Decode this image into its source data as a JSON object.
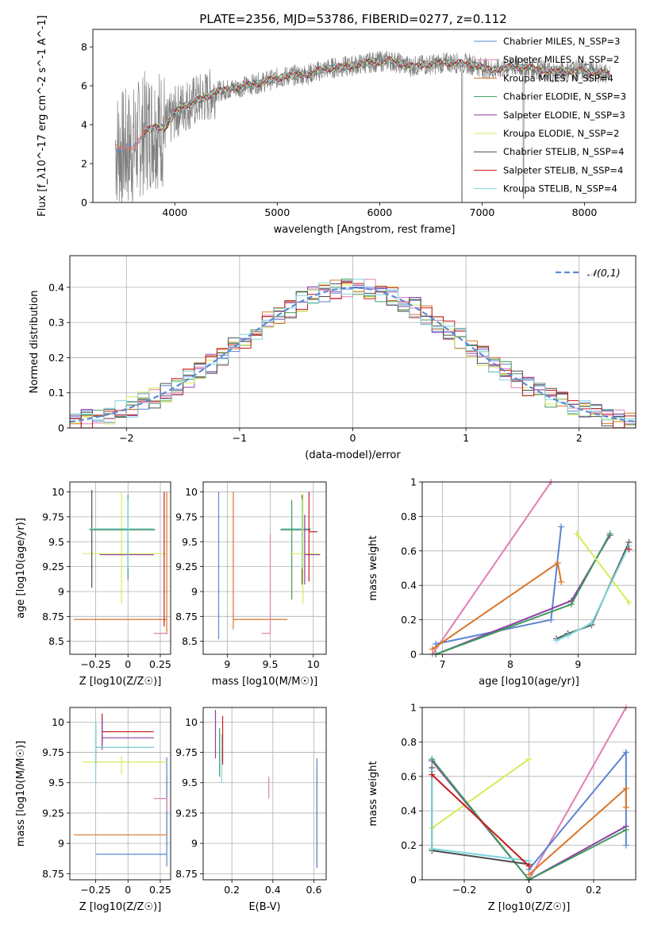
{
  "title": "PLATE=2356, MJD=53786, FIBERID=0277, z=0.112",
  "colors": {
    "chabrier_miles": "#5b84d2",
    "salpeter_miles": "#e07fb3",
    "kroupa_miles": "#d9772a",
    "chabrier_elodie": "#3f9c5d",
    "salpeter_elodie": "#8e3fa6",
    "kroupa_elodie": "#d3ec5a",
    "chabrier_stelib": "#4d4d4d",
    "salpeter_stelib": "#c81b1b",
    "kroupa_stelib": "#7fd6dd",
    "data": "#7f7f7f",
    "gaussian": "#5b8ad6",
    "grid": "#b0b0b0"
  },
  "chart_data": [
    {
      "type": "line",
      "xlabel": "wavelength [Angstrom, rest frame]",
      "ylabel": "Flux [f_λ10^-17 erg cm^-2 s^-1 A^-1]",
      "xlim": [
        3200,
        8500
      ],
      "ylim": [
        0,
        8.9
      ],
      "xticks": [
        4000,
        5000,
        6000,
        7000,
        8000
      ],
      "yticks": [
        0,
        2,
        4,
        6,
        8
      ],
      "legend_position": "top-right",
      "series": [
        {
          "name": "Chabrier MILES, N_SSP=3"
        },
        {
          "name": "Salpeter MILES, N_SSP=2"
        },
        {
          "name": "Kroupa MILES, N_SSP=4"
        },
        {
          "name": "Chabrier ELODIE, N_SSP=3"
        },
        {
          "name": "Salpeter ELODIE, N_SSP=3"
        },
        {
          "name": "Kroupa ELODIE, N_SSP=2"
        },
        {
          "name": "Chabrier STELIB, N_SSP=4"
        },
        {
          "name": "Salpeter STELIB, N_SSP=4"
        },
        {
          "name": "Kroupa STELIB, N_SSP=4"
        }
      ],
      "model_curve": {
        "x": [
          3420,
          3500,
          3600,
          3700,
          3800,
          3900,
          4000,
          4100,
          4200,
          4300,
          4400,
          4500,
          4700,
          4900,
          5100,
          5300,
          5500,
          5700,
          5900,
          6100,
          6300,
          6500,
          6700,
          6900,
          7100,
          7300,
          7500,
          7700,
          7900,
          8100,
          8250
        ],
        "y": [
          2.85,
          2.7,
          2.9,
          3.6,
          3.9,
          3.8,
          4.6,
          5.0,
          5.2,
          5.4,
          5.7,
          5.8,
          6.0,
          6.25,
          6.5,
          6.6,
          6.9,
          7.0,
          7.2,
          7.3,
          7.0,
          7.1,
          7.2,
          7.1,
          6.8,
          7.0,
          6.9,
          6.7,
          6.8,
          6.7,
          6.6
        ]
      }
    },
    {
      "type": "line",
      "xlabel": "(data-model)/error",
      "ylabel": "Normed distribution",
      "xlim": [
        -2.5,
        2.5
      ],
      "ylim": [
        0,
        0.49
      ],
      "xticks": [
        -2,
        -1,
        0,
        1,
        2
      ],
      "yticks": [
        0.0,
        0.1,
        0.2,
        0.3,
        0.4
      ],
      "legend_position": "top-right",
      "series": [
        {
          "name": "𝒩(0,1)"
        }
      ]
    },
    {
      "type": "scatter",
      "xlabel": "Z [log10(Z/Z☉)]",
      "ylabel": "age  [log10(age/yr)]",
      "xlim": [
        -0.45,
        0.33
      ],
      "ylim": [
        8.37,
        10.1
      ],
      "xticks": [
        -0.25,
        0.0,
        0.25
      ],
      "yticks": [
        8.5,
        8.75,
        9.0,
        9.25,
        9.5,
        9.75,
        10.0
      ],
      "points": [
        {
          "c": "kroupa_miles",
          "x": 0.3,
          "y": 8.72,
          "xerr": [
            0.72,
            0.0
          ],
          "yerr": [
            0.15,
            1.28
          ]
        },
        {
          "c": "salpeter_miles",
          "x": 0.3,
          "y": 8.58,
          "xerr": [
            0.1,
            0.0
          ],
          "yerr": [
            0,
            0.0
          ]
        },
        {
          "c": "kroupa_elodie",
          "x": -0.05,
          "y": 9.38,
          "xerr": [
            0.3,
            0.35
          ],
          "yerr": [
            0.5,
            0.62
          ]
        },
        {
          "c": "salpeter_elodie",
          "x": 0.0,
          "y": 9.37,
          "xerr": [
            0.22,
            0.2
          ],
          "yerr": [
            0.15,
            0.15
          ]
        },
        {
          "c": "chabrier_stelib",
          "x": -0.28,
          "y": 9.62,
          "xerr": [
            0.0,
            0.49
          ],
          "yerr": [
            0.58,
            0.4
          ]
        },
        {
          "c": "chabrier_elodie",
          "x": 0.0,
          "y": 9.62,
          "xerr": [
            0.3,
            0.2
          ],
          "yerr": [
            0.5,
            0.35
          ]
        },
        {
          "c": "kroupa_stelib",
          "x": 0.0,
          "y": 9.63,
          "xerr": [
            0.3,
            0.2
          ],
          "yerr": [
            0.4,
            0.3
          ]
        },
        {
          "c": "salpeter_stelib",
          "x": 0.28,
          "y": 9.0,
          "xerr": [
            0.0,
            0.0
          ],
          "yerr": [
            0.35,
            1.0
          ]
        }
      ]
    },
    {
      "type": "scatter",
      "xlabel": "mass [log10(M/M☉)]",
      "ylabel": "",
      "xlim": [
        8.72,
        10.15
      ],
      "ylim": [
        8.37,
        10.1
      ],
      "xticks": [
        9.0,
        9.5,
        10.0
      ],
      "yticks": [
        8.5,
        8.75,
        9.0,
        9.25,
        9.5,
        9.75,
        10.0
      ],
      "points": [
        {
          "c": "chabrier_miles",
          "x": 8.9,
          "y": 8.72,
          "xerr": [
            0,
            0
          ],
          "yerr": [
            0.2,
            1.28
          ]
        },
        {
          "c": "kroupa_miles",
          "x": 9.07,
          "y": 8.72,
          "xerr": [
            0.0,
            0.63
          ],
          "yerr": [
            0.1,
            1.28
          ]
        },
        {
          "c": "salpeter_miles",
          "x": 9.5,
          "y": 8.58,
          "xerr": [
            0.1,
            0.0
          ],
          "yerr": [
            0.0,
            1.0
          ]
        },
        {
          "c": "chabrier_stelib",
          "x": 9.87,
          "y": 9.62,
          "xerr": [
            0.25,
            0.1
          ],
          "yerr": [
            0.55,
            0.35
          ]
        },
        {
          "c": "kroupa_stelib",
          "x": 9.87,
          "y": 9.63,
          "xerr": [
            0.25,
            0.1
          ],
          "yerr": [
            0.4,
            0.3
          ]
        },
        {
          "c": "chabrier_elodie",
          "x": 9.75,
          "y": 9.62,
          "xerr": [
            0.1,
            0.1
          ],
          "yerr": [
            0.7,
            0.3
          ]
        },
        {
          "c": "kroupa_elodie",
          "x": 9.88,
          "y": 9.38,
          "xerr": [
            0.15,
            0.2
          ],
          "yerr": [
            0.5,
            0.6
          ]
        },
        {
          "c": "salpeter_elodie",
          "x": 9.9,
          "y": 9.37,
          "xerr": [
            0.0,
            0.18
          ],
          "yerr": [
            0.3,
            0.4
          ]
        },
        {
          "c": "salpeter_stelib",
          "x": 9.95,
          "y": 9.6,
          "xerr": [
            0.0,
            0.1
          ],
          "yerr": [
            0.5,
            0.4
          ]
        }
      ]
    },
    {
      "type": "line",
      "xlabel": "age  [log10(age/yr)]",
      "ylabel": "mass weight",
      "xlim": [
        6.7,
        9.85
      ],
      "ylim": [
        0,
        1.0
      ],
      "xticks": [
        7,
        8,
        9
      ],
      "yticks": [
        0.0,
        0.2,
        0.4,
        0.6,
        0.8,
        1.0
      ],
      "series": [
        {
          "c": "salpeter_miles",
          "x": [
            6.85,
            8.6
          ],
          "y": [
            0.0,
            1.0
          ]
        },
        {
          "c": "chabrier_miles",
          "x": [
            6.9,
            8.6,
            8.75
          ],
          "y": [
            0.06,
            0.2,
            0.74
          ]
        },
        {
          "c": "kroupa_miles",
          "x": [
            6.85,
            8.7,
            8.75
          ],
          "y": [
            0.03,
            0.53,
            0.42
          ]
        },
        {
          "c": "salpeter_elodie",
          "x": [
            6.9,
            8.9,
            9.47
          ],
          "y": [
            0.0,
            0.31,
            0.69
          ]
        },
        {
          "c": "chabrier_elodie",
          "x": [
            6.9,
            8.9,
            9.47
          ],
          "y": [
            0.0,
            0.29,
            0.7
          ]
        },
        {
          "c": "kroupa_elodie",
          "x": [
            8.98,
            9.75
          ],
          "y": [
            0.7,
            0.3
          ]
        },
        {
          "c": "chabrier_stelib",
          "x": [
            8.68,
            8.85,
            9.2,
            9.75
          ],
          "y": [
            0.09,
            0.12,
            0.17,
            0.65
          ]
        },
        {
          "c": "kroupa_stelib",
          "x": [
            8.68,
            8.85,
            9.2,
            9.75
          ],
          "y": [
            0.08,
            0.11,
            0.18,
            0.63
          ]
        },
        {
          "c": "salpeter_stelib",
          "x": [
            9.75
          ],
          "y": [
            0.61
          ]
        }
      ]
    },
    {
      "type": "scatter",
      "xlabel": "Z [log10(Z/Z☉)]",
      "ylabel": "mass [log10(M/M☉)]",
      "xlim": [
        -0.45,
        0.33
      ],
      "ylim": [
        8.7,
        10.12
      ],
      "xticks": [
        -0.25,
        0.0,
        0.25
      ],
      "yticks": [
        8.75,
        9.0,
        9.25,
        9.5,
        9.75,
        10.0
      ],
      "points": [
        {
          "c": "kroupa_miles",
          "x": 0.3,
          "y": 9.07,
          "xerr": [
            0.72,
            0.0
          ],
          "yerr": [
            0.1,
            0.5
          ]
        },
        {
          "c": "chabrier_miles",
          "x": 0.3,
          "y": 8.91,
          "xerr": [
            0.55,
            0.0
          ],
          "yerr": [
            0.1,
            0.8
          ]
        },
        {
          "c": "salpeter_miles",
          "x": 0.3,
          "y": 9.37,
          "xerr": [
            0.1,
            0.0
          ],
          "yerr": [
            0.1,
            0.0
          ]
        },
        {
          "c": "kroupa_elodie",
          "x": -0.05,
          "y": 9.67,
          "xerr": [
            0.3,
            0.35
          ],
          "yerr": [
            0.1,
            0.05
          ]
        },
        {
          "c": "salpeter_stelib",
          "x": -0.2,
          "y": 9.92,
          "xerr": [
            0.0,
            0.4
          ],
          "yerr": [
            0.1,
            0.15
          ]
        },
        {
          "c": "salpeter_elodie",
          "x": -0.2,
          "y": 9.87,
          "xerr": [
            0.0,
            0.4
          ],
          "yerr": [
            0.1,
            0.15
          ]
        },
        {
          "c": "chabrier_elodie",
          "x": -0.25,
          "y": 9.79,
          "xerr": [
            0.0,
            0.45
          ],
          "yerr": [
            0.1,
            0.15
          ]
        },
        {
          "c": "chabrier_stelib",
          "x": -0.25,
          "y": 9.79,
          "xerr": [
            0.0,
            0.45
          ],
          "yerr": [
            0.15,
            0.2
          ]
        },
        {
          "c": "kroupa_stelib",
          "x": -0.25,
          "y": 9.79,
          "xerr": [
            0.0,
            0.45
          ],
          "yerr": [
            0.3,
            0.2
          ]
        }
      ]
    },
    {
      "type": "scatter",
      "xlabel": "E(B-V)",
      "ylabel": "",
      "xlim": [
        0.06,
        0.66
      ],
      "ylim": [
        8.7,
        10.12
      ],
      "xticks": [
        0.2,
        0.4,
        0.6
      ],
      "yticks": [
        8.75,
        9.0,
        9.25,
        9.5,
        9.75,
        10.0
      ],
      "points": [
        {
          "c": "salpeter_elodie",
          "x": 0.12,
          "y": 9.9,
          "xerr": [
            0,
            0
          ],
          "yerr": [
            0.2,
            0.2
          ]
        },
        {
          "c": "chabrier_elodie",
          "x": 0.14,
          "y": 9.75,
          "xerr": [
            0,
            0
          ],
          "yerr": [
            0.2,
            0.2
          ]
        },
        {
          "c": "salpeter_stelib",
          "x": 0.155,
          "y": 9.85,
          "xerr": [
            0,
            0
          ],
          "yerr": [
            0.2,
            0.2
          ]
        },
        {
          "c": "kroupa_stelib",
          "x": 0.15,
          "y": 9.7,
          "xerr": [
            0,
            0
          ],
          "yerr": [
            0.2,
            0.2
          ]
        },
        {
          "c": "salpeter_miles",
          "x": 0.38,
          "y": 9.47,
          "xerr": [
            0,
            0
          ],
          "yerr": [
            0.1,
            0.08
          ]
        },
        {
          "c": "kroupa_miles",
          "x": 0.615,
          "y": 9.2,
          "xerr": [
            0,
            0
          ],
          "yerr": [
            0.4,
            0.4
          ]
        },
        {
          "c": "chabrier_miles",
          "x": 0.615,
          "y": 9.3,
          "xerr": [
            0,
            0
          ],
          "yerr": [
            0.5,
            0.4
          ]
        }
      ]
    },
    {
      "type": "line",
      "xlabel": "Z [log10(Z/Z☉)]",
      "ylabel": "mass weight",
      "xlim": [
        -0.33,
        0.33
      ],
      "ylim": [
        0,
        1.0
      ],
      "xticks": [
        -0.2,
        0.0,
        0.2
      ],
      "yticks": [
        0.0,
        0.2,
        0.4,
        0.6,
        0.8,
        1.0
      ],
      "series": [
        {
          "c": "salpeter_miles",
          "x": [
            0.0,
            0.3
          ],
          "y": [
            0.0,
            1.0
          ]
        },
        {
          "c": "chabrier_miles",
          "x": [
            0.0,
            0.3,
            0.3
          ],
          "y": [
            0.06,
            0.74,
            0.2
          ]
        },
        {
          "c": "kroupa_miles",
          "x": [
            0.0,
            0.3,
            0.3
          ],
          "y": [
            0.03,
            0.53,
            0.42
          ]
        },
        {
          "c": "kroupa_elodie",
          "x": [
            -0.3,
            0.0
          ],
          "y": [
            0.3,
            0.7
          ]
        },
        {
          "c": "salpeter_elodie",
          "x": [
            -0.3,
            0.0,
            0.3
          ],
          "y": [
            0.69,
            0.0,
            0.31
          ]
        },
        {
          "c": "chabrier_elodie",
          "x": [
            -0.3,
            0.0,
            0.3
          ],
          "y": [
            0.7,
            0.0,
            0.29
          ]
        },
        {
          "c": "chabrier_stelib",
          "x": [
            -0.3,
            -0.3,
            0.0
          ],
          "y": [
            0.65,
            0.17,
            0.09
          ]
        },
        {
          "c": "kroupa_stelib",
          "x": [
            -0.3,
            -0.3,
            0.0
          ],
          "y": [
            0.63,
            0.18,
            0.11
          ]
        },
        {
          "c": "salpeter_stelib",
          "x": [
            -0.3,
            0.0
          ],
          "y": [
            0.61,
            0.08
          ]
        }
      ]
    }
  ]
}
